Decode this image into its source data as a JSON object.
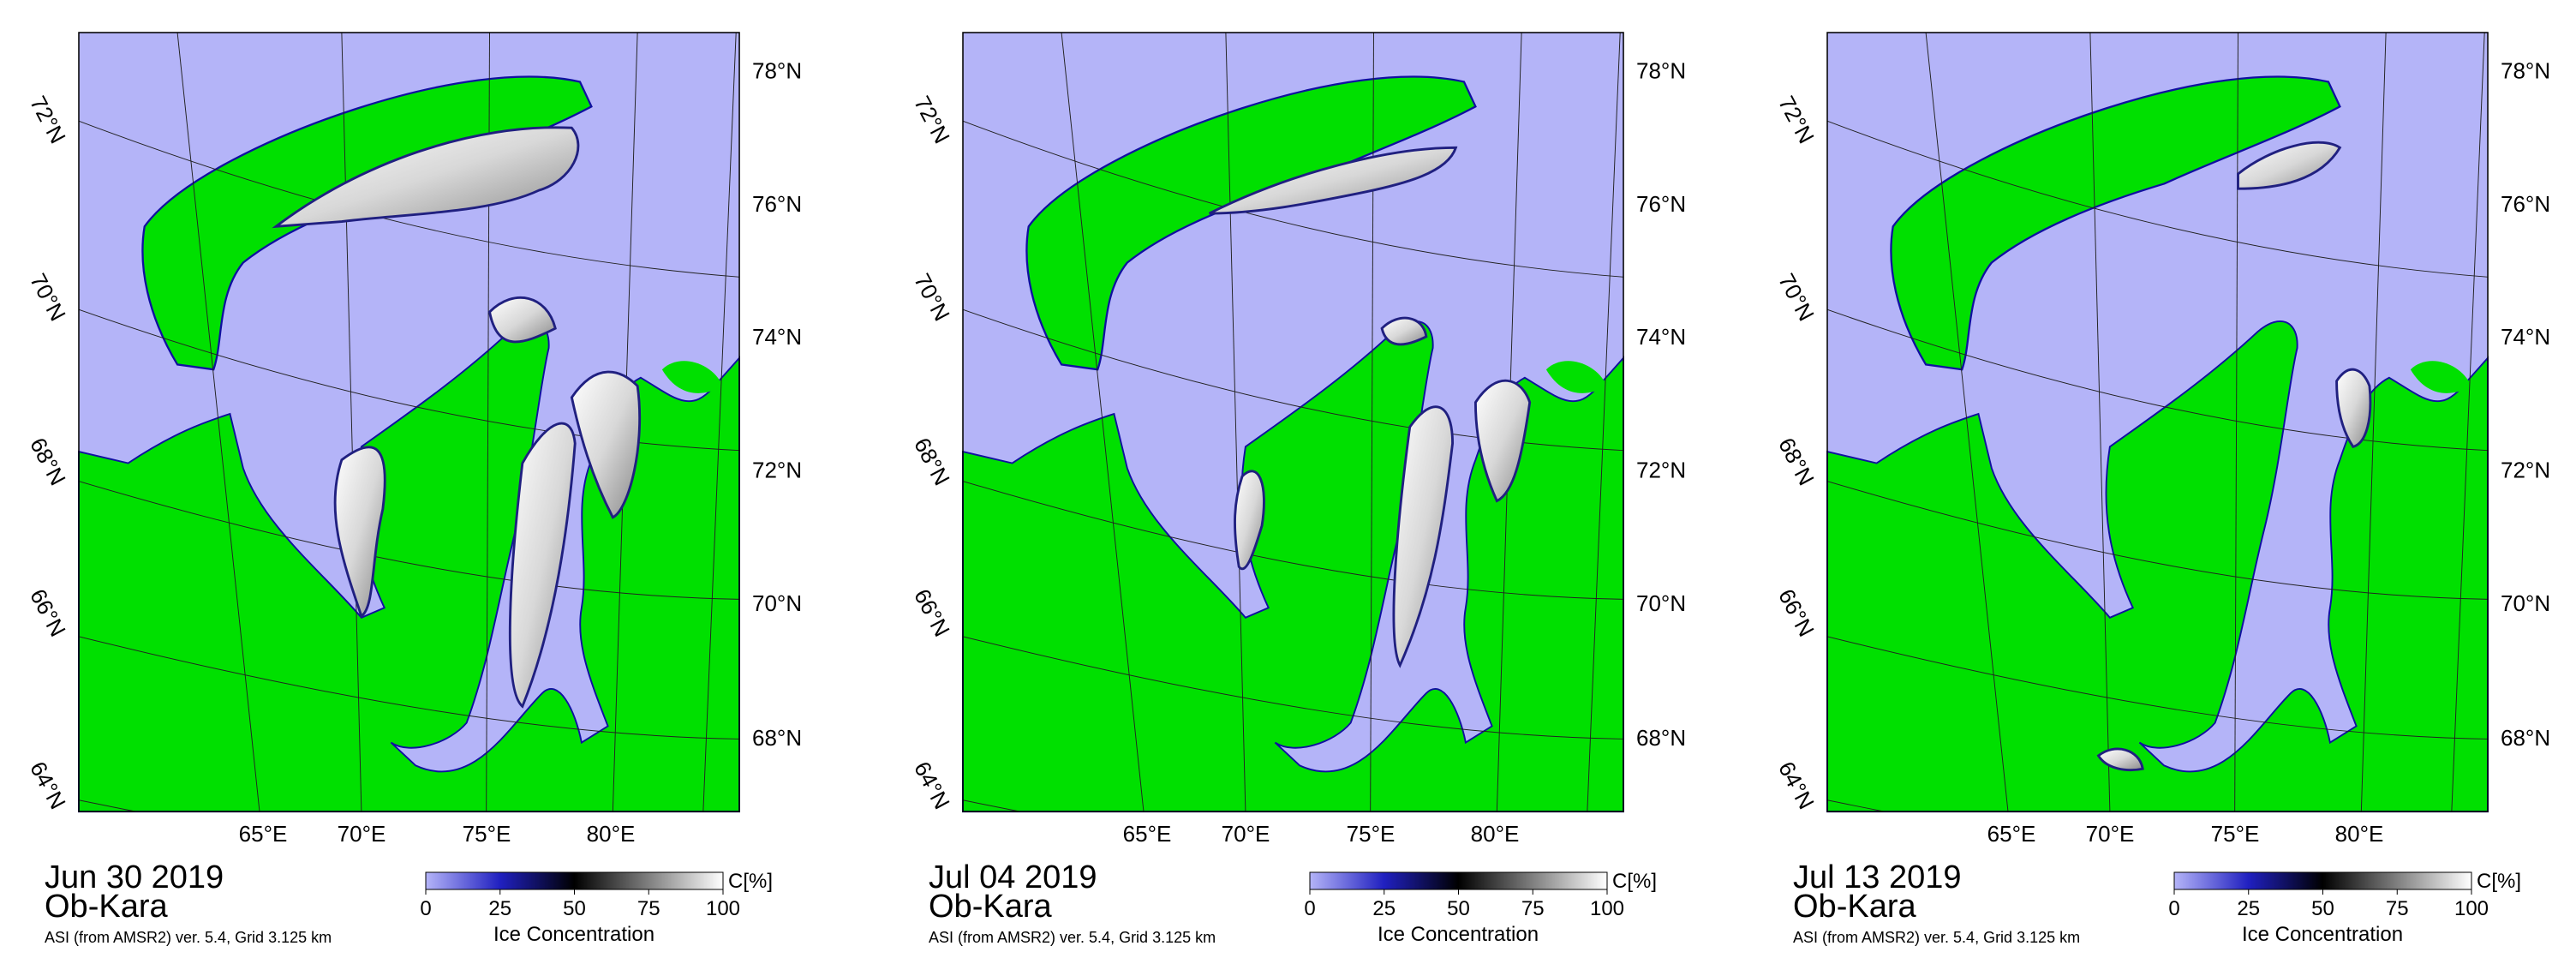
{
  "panels": [
    {
      "date": "Jun 30 2019",
      "region": "Ob-Kara",
      "source": "ASI (from AMSR2) ver. 5.4,  Grid 3.125 km"
    },
    {
      "date": "Jul 04 2019",
      "region": "Ob-Kara",
      "source": "ASI (from AMSR2) ver. 5.4,  Grid 3.125 km"
    },
    {
      "date": "Jul 13 2019",
      "region": "Ob-Kara",
      "source": "ASI (from AMSR2) ver. 5.4,  Grid 3.125 km"
    }
  ],
  "lat_labels_left": [
    "72°N",
    "70°N",
    "68°N",
    "66°N",
    "64°N"
  ],
  "lat_labels_right": [
    "78°N",
    "76°N",
    "74°N",
    "72°N",
    "70°N",
    "68°N"
  ],
  "lon_labels": [
    "65°E",
    "70°E",
    "75°E",
    "80°E"
  ],
  "colorbar": {
    "unit": "C[%]",
    "label": "Ice Concentration",
    "ticks": [
      "0",
      "25",
      "50",
      "75",
      "100"
    ]
  }
}
